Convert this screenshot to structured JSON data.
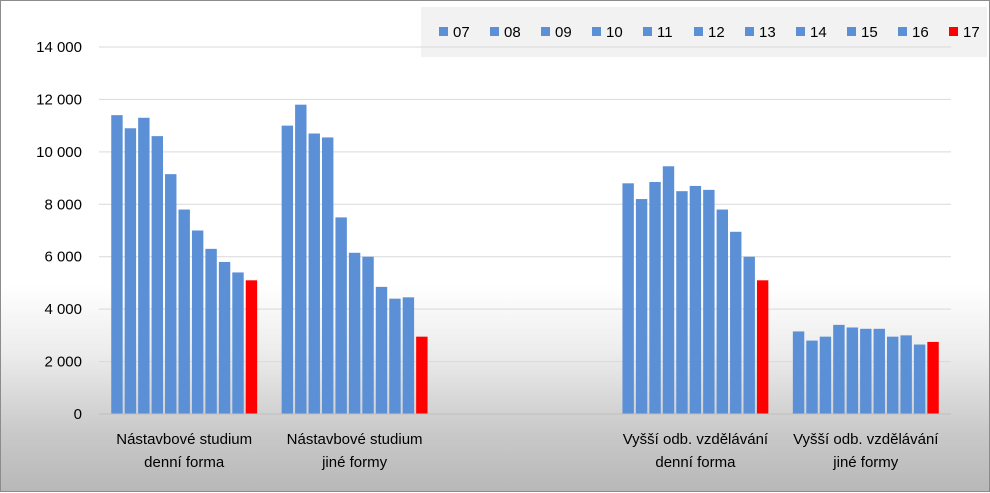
{
  "chart_data": {
    "type": "bar",
    "categories": [
      [
        "Nástavbové studium",
        "denní forma"
      ],
      [
        "Nástavbové studium",
        "jiné formy"
      ],
      [
        "",
        ""
      ],
      [
        "Vyšší odb. vzdělávání",
        "denní forma"
      ],
      [
        "Vyšší odb. vzdělávání",
        "jiné formy"
      ]
    ],
    "series": [
      {
        "name": "07",
        "color": "#5b8fd6",
        "values": [
          11400,
          11000,
          null,
          8800,
          3150
        ]
      },
      {
        "name": "08",
        "color": "#5b8fd6",
        "values": [
          10900,
          11800,
          null,
          8200,
          2800
        ]
      },
      {
        "name": "09",
        "color": "#5b8fd6",
        "values": [
          11300,
          10700,
          null,
          8850,
          2950
        ]
      },
      {
        "name": "10",
        "color": "#5b8fd6",
        "values": [
          10600,
          10550,
          null,
          9450,
          3400
        ]
      },
      {
        "name": "11",
        "color": "#5b8fd6",
        "values": [
          9150,
          7500,
          null,
          8500,
          3300
        ]
      },
      {
        "name": "12",
        "color": "#5b8fd6",
        "values": [
          7800,
          6150,
          null,
          8700,
          3250
        ]
      },
      {
        "name": "13",
        "color": "#5b8fd6",
        "values": [
          7000,
          6000,
          null,
          8550,
          3250
        ]
      },
      {
        "name": "14",
        "color": "#5b8fd6",
        "values": [
          6300,
          4850,
          null,
          7800,
          2950
        ]
      },
      {
        "name": "15",
        "color": "#5b8fd6",
        "values": [
          5800,
          4400,
          null,
          6950,
          3000
        ]
      },
      {
        "name": "16",
        "color": "#5b8fd6",
        "values": [
          5400,
          4450,
          null,
          6000,
          2650
        ]
      },
      {
        "name": "17",
        "color": "#ff0000",
        "values": [
          5100,
          2950,
          null,
          5100,
          2750
        ]
      }
    ],
    "yticks": [
      "0",
      "2 000",
      "4 000",
      "6 000",
      "8 000",
      "10 000",
      "12 000",
      "14 000"
    ],
    "ylim": [
      0,
      14000
    ],
    "ytick_step": 2000,
    "grid": true,
    "legend_position": "top-right"
  }
}
